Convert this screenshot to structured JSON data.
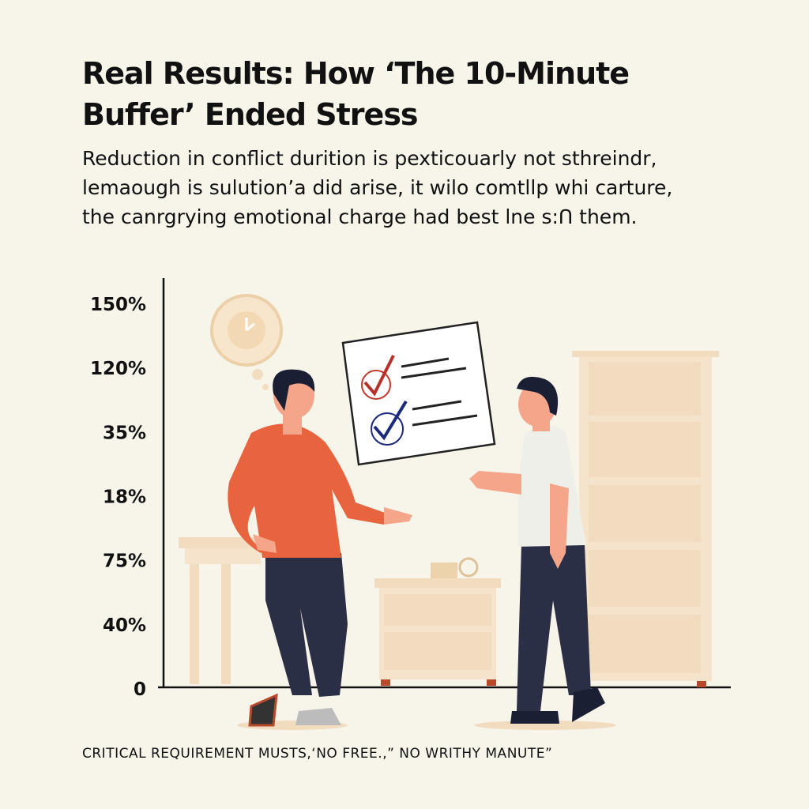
{
  "title_lines": [
    "Real Results: How ‘The 10-Minute",
    "Buffer’ Ended Stress"
  ],
  "body_lines": [
    "Reduction in conflict durition is pexticouarly not sthreindr,",
    "lemaough is sulution’a did arise, it wilo comtllp whi carture,",
    "the canrgrying emotional charge had best lne s:ꓵ them."
  ],
  "axis_labels": [
    "150%",
    "120%",
    "35%",
    "18%",
    "75%",
    "40%",
    "0"
  ],
  "footer": "CRITICAL REQUIREMENT MUSTS,‘NO FREE.,” NO WRITHY MANUTE”"
}
